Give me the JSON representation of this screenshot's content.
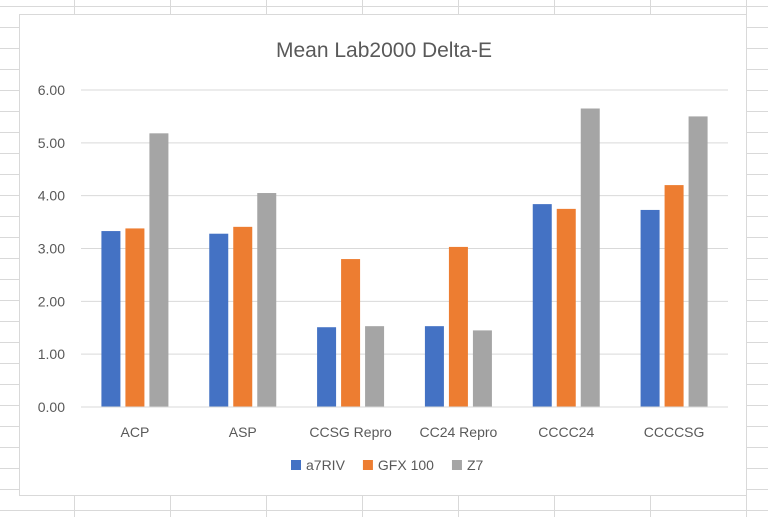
{
  "chart_data": {
    "type": "bar",
    "title": "Mean Lab2000 Delta-E",
    "xlabel": "",
    "ylabel": "",
    "categories": [
      "ACP",
      "ASP",
      "CCSG Repro",
      "CC24 Repro",
      "CCCC24",
      "CCCCSG"
    ],
    "series": [
      {
        "name": "a7RIV",
        "color": "#4472C4",
        "values": [
          3.33,
          3.28,
          1.51,
          1.53,
          3.84,
          3.73
        ]
      },
      {
        "name": "GFX 100",
        "color": "#ED7D31",
        "values": [
          3.38,
          3.41,
          2.8,
          3.03,
          3.75,
          4.2
        ]
      },
      {
        "name": "Z7",
        "color": "#A5A5A5",
        "values": [
          5.18,
          4.05,
          1.53,
          1.45,
          5.65,
          5.5
        ]
      }
    ],
    "ylim": [
      0,
      6
    ],
    "yticks": [
      "0.00",
      "1.00",
      "2.00",
      "3.00",
      "4.00",
      "5.00",
      "6.00"
    ],
    "grid": true,
    "legend_position": "bottom"
  }
}
